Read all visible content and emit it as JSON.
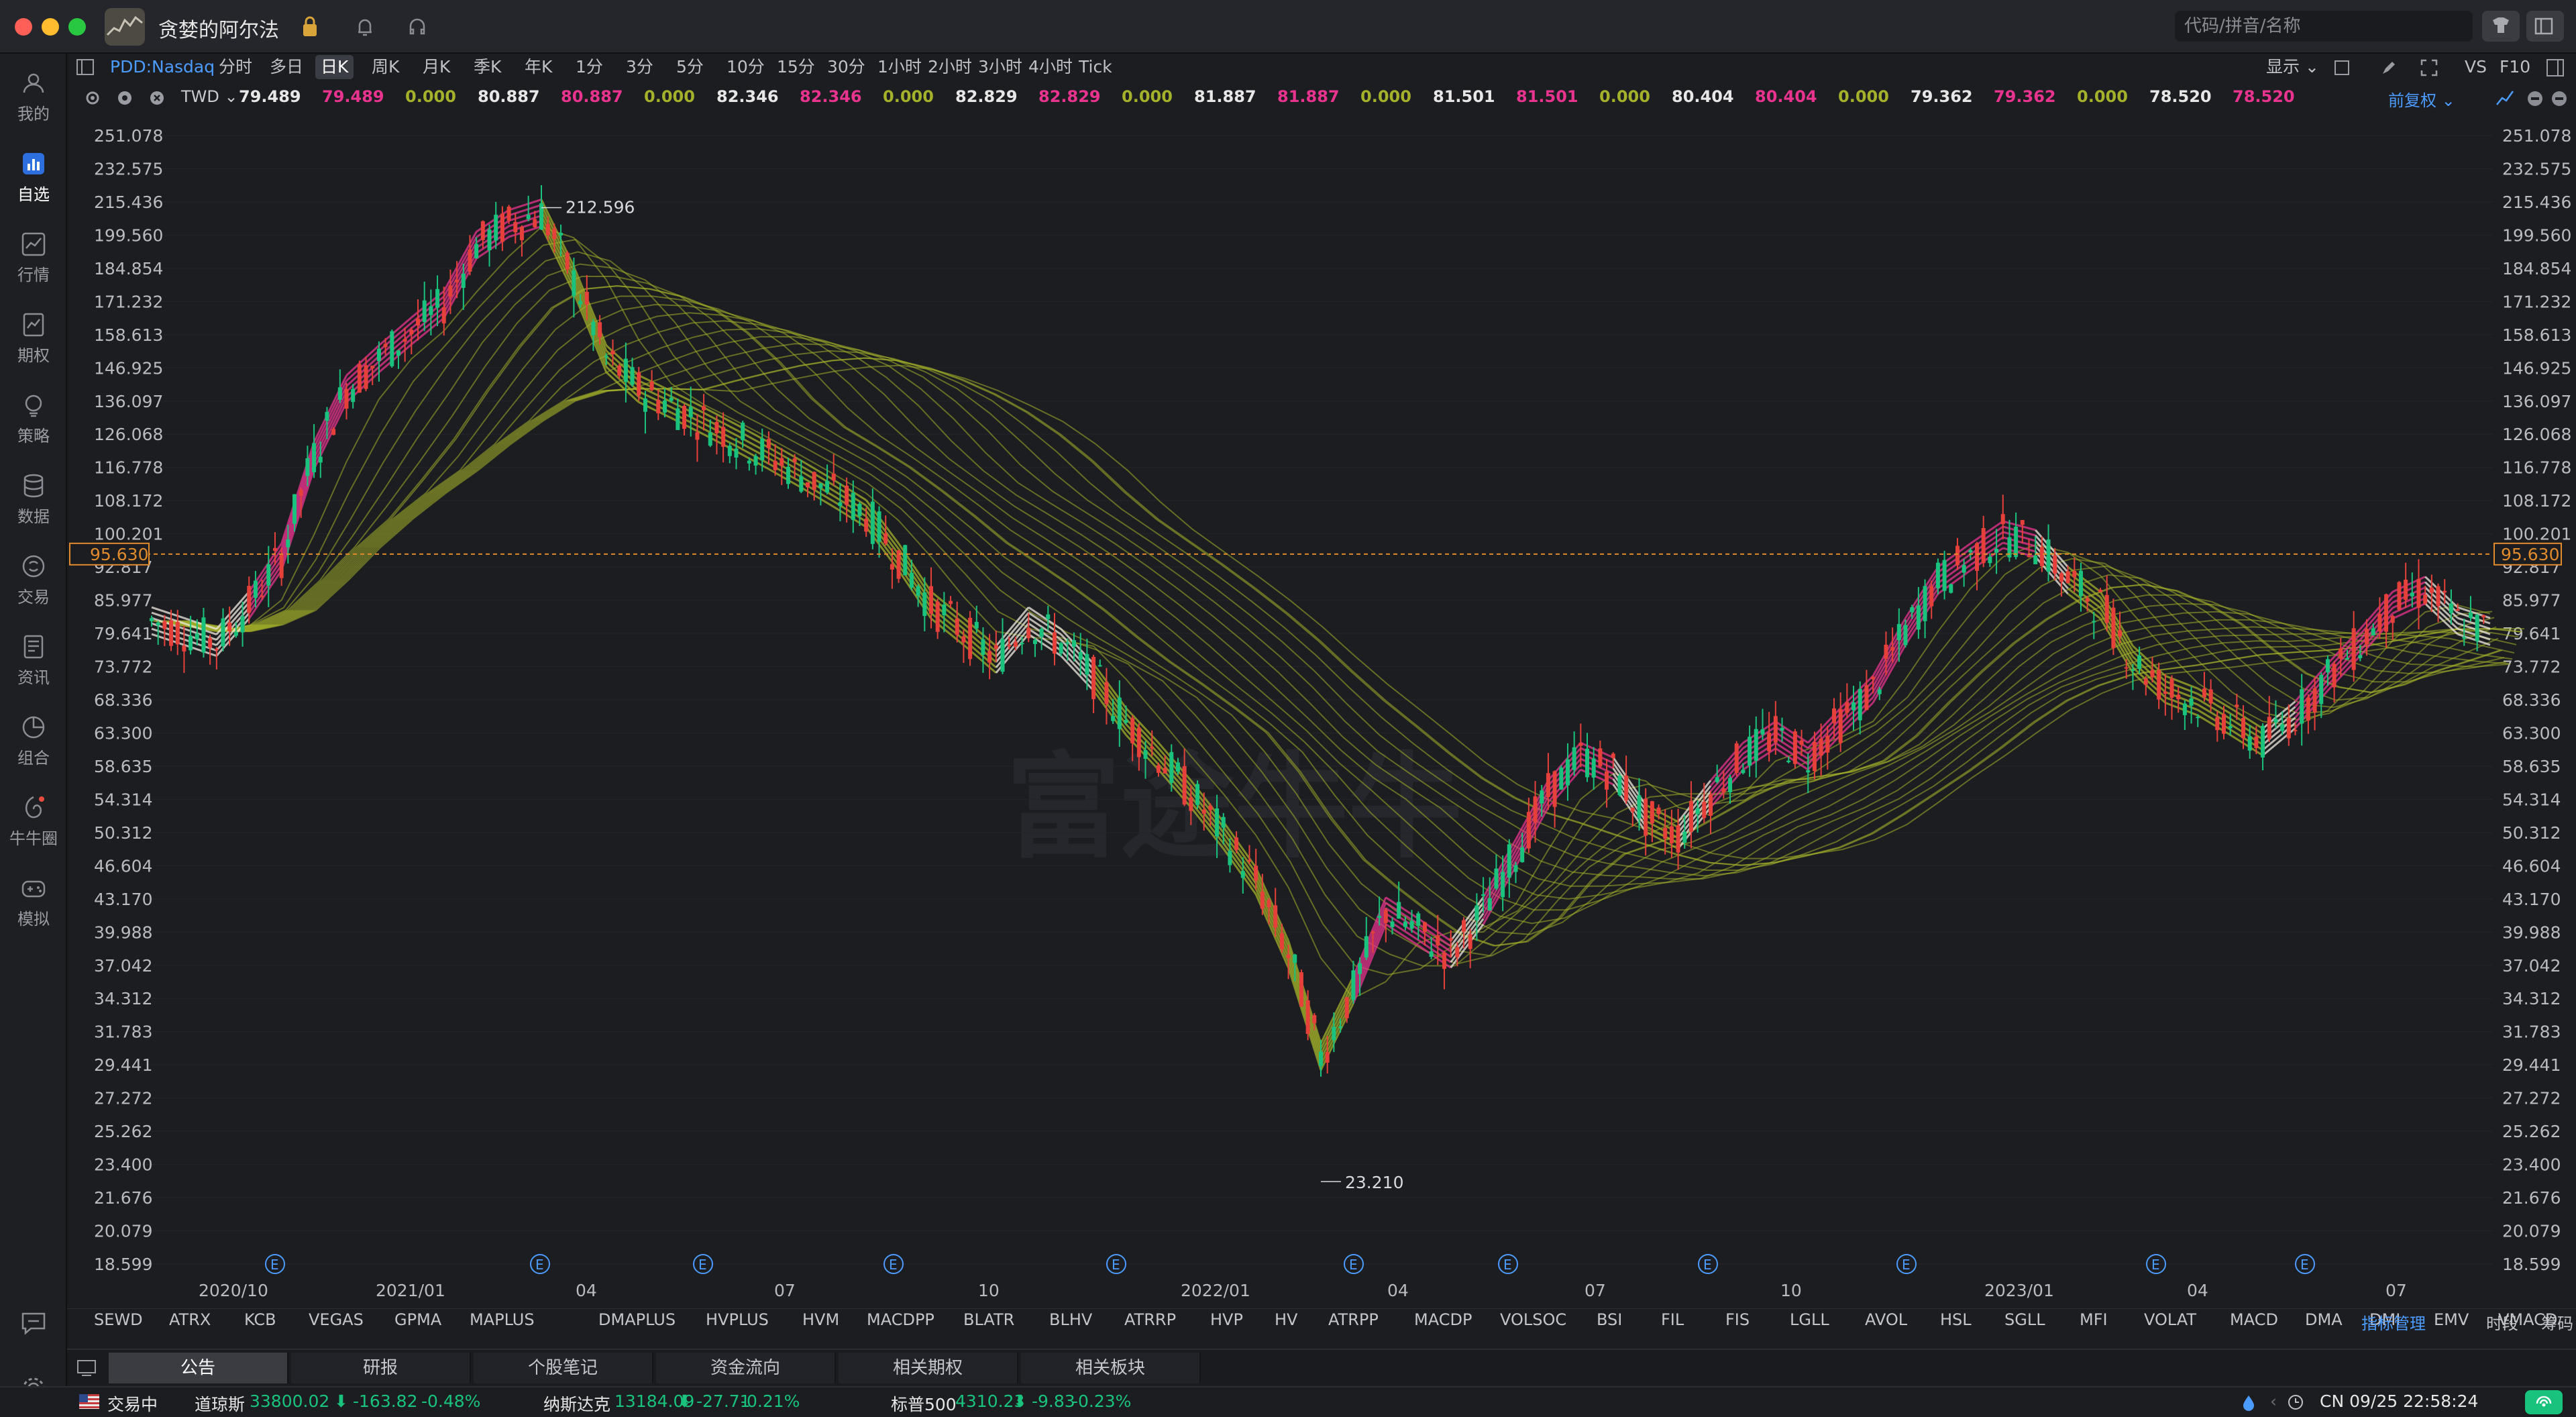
{
  "window": {
    "title": "贪婪的阿尔法",
    "search_placeholder": "代码/拼音/名称"
  },
  "sidebar": {
    "items": [
      {
        "label": "我的",
        "icon": "user-icon"
      },
      {
        "label": "自选",
        "icon": "watchlist-icon",
        "active": true
      },
      {
        "label": "行情",
        "icon": "market-icon"
      },
      {
        "label": "期权",
        "icon": "options-icon"
      },
      {
        "label": "策略",
        "icon": "strategy-icon"
      },
      {
        "label": "数据",
        "icon": "database-icon"
      },
      {
        "label": "交易",
        "icon": "trade-icon"
      },
      {
        "label": "资讯",
        "icon": "news-icon"
      },
      {
        "label": "组合",
        "icon": "portfolio-icon"
      },
      {
        "label": "牛牛圈",
        "icon": "community-icon"
      },
      {
        "label": "模拟",
        "icon": "simulate-icon"
      }
    ]
  },
  "toolbar": {
    "symbol": "PDD:Nasdaq",
    "timeframes": [
      "分时",
      "多日",
      "日K",
      "周K",
      "月K",
      "季K",
      "年K",
      "1分",
      "3分",
      "5分",
      "10分",
      "15分",
      "30分",
      "1小时",
      "2小时",
      "3小时",
      "4小时",
      "Tick"
    ],
    "active_timeframe": "日K",
    "display": "显示",
    "vs": "VS",
    "f10": "F10",
    "adjust": "前复权"
  },
  "ma_row": {
    "indicator": "TWD",
    "values": [
      [
        "79.489",
        "#e7e7e7"
      ],
      [
        "79.489",
        "#e8338f"
      ],
      [
        "0.000",
        "#a4b12a"
      ],
      [
        "80.887",
        "#e7e7e7"
      ],
      [
        "80.887",
        "#e8338f"
      ],
      [
        "0.000",
        "#a4b12a"
      ],
      [
        "82.346",
        "#e7e7e7"
      ],
      [
        "82.346",
        "#e8338f"
      ],
      [
        "0.000",
        "#a4b12a"
      ],
      [
        "82.829",
        "#e7e7e7"
      ],
      [
        "82.829",
        "#e8338f"
      ],
      [
        "0.000",
        "#a4b12a"
      ],
      [
        "81.887",
        "#e7e7e7"
      ],
      [
        "81.887",
        "#e8338f"
      ],
      [
        "0.000",
        "#a4b12a"
      ],
      [
        "81.501",
        "#e7e7e7"
      ],
      [
        "81.501",
        "#e8338f"
      ],
      [
        "0.000",
        "#a4b12a"
      ],
      [
        "80.404",
        "#e7e7e7"
      ],
      [
        "80.404",
        "#e8338f"
      ],
      [
        "0.000",
        "#a4b12a"
      ],
      [
        "79.362",
        "#e7e7e7"
      ],
      [
        "79.362",
        "#e8338f"
      ],
      [
        "0.000",
        "#a4b12a"
      ],
      [
        "78.520",
        "#e7e7e7"
      ],
      [
        "78.520",
        "#e8338f"
      ]
    ]
  },
  "chart_data": {
    "type": "candlestick",
    "y_ticks": [
      "251.078",
      "232.575",
      "215.436",
      "199.560",
      "184.854",
      "171.232",
      "158.613",
      "146.925",
      "136.097",
      "126.068",
      "116.778",
      "108.172",
      "100.201",
      "92.817",
      "85.977",
      "79.641",
      "73.772",
      "68.336",
      "63.300",
      "58.635",
      "54.314",
      "50.312",
      "46.604",
      "43.170",
      "39.988",
      "37.042",
      "34.312",
      "31.783",
      "29.441",
      "27.272",
      "25.262",
      "23.400",
      "21.676",
      "20.079",
      "18.599"
    ],
    "x_labels": [
      "2020/10",
      "2021/01",
      "04",
      "07",
      "10",
      "2022/01",
      "04",
      "07",
      "10",
      "2023/01",
      "04",
      "07"
    ],
    "current_price": "95.630",
    "high_label": "212.596",
    "low_label": "23.210",
    "ylim": [
      18.599,
      251.078
    ],
    "scale": "log",
    "series_close": [
      82,
      80,
      78,
      85,
      95,
      120,
      140,
      150,
      160,
      170,
      195,
      205,
      210,
      180,
      150,
      140,
      135,
      130,
      125,
      120,
      115,
      110,
      105,
      95,
      85,
      80,
      75,
      82,
      78,
      72,
      65,
      60,
      55,
      50,
      45,
      38,
      30,
      35,
      42,
      40,
      38,
      42,
      48,
      55,
      60,
      58,
      52,
      50,
      55,
      60,
      63,
      60,
      65,
      70,
      80,
      90,
      95,
      100,
      98,
      90,
      85,
      75,
      70,
      68,
      65,
      62,
      66,
      72,
      78,
      85,
      88,
      82,
      80
    ],
    "band_colors": [
      "#f1eadf",
      "#e8338f",
      "#a4b12a"
    ],
    "event_marker": "E"
  },
  "indicator_tabs": [
    "SEWD",
    "ATRX",
    "KCB",
    "VEGAS",
    "GPMA",
    "MAPLUS",
    "DMAPLUS",
    "HVPLUS",
    "HVM",
    "MACDPP",
    "BLATR",
    "BLHV",
    "ATRRP",
    "HVP",
    "HV",
    "ATRPP",
    "MACDP",
    "VOLSOC",
    "BSI",
    "FIL",
    "FIS",
    "LGLL",
    "AVOL",
    "HSL",
    "SGLL",
    "MFI",
    "VOLAT",
    "MACD",
    "DMA",
    "DMI",
    "EMV",
    "VMACD"
  ],
  "indicator_manage": "指标管理",
  "segment_label": "时段",
  "chip_label": "筹码",
  "panel_tabs": [
    "公告",
    "研报",
    "个股笔记",
    "资金流向",
    "相关期权",
    "相关板块"
  ],
  "status": {
    "market_state": "交易中",
    "dow": {
      "name": "道琼斯",
      "value": "33800.02",
      "change": "-163.82",
      "pct": "-0.48%"
    },
    "nasdaq": {
      "name": "纳斯达克",
      "value": "13184.09",
      "change": "-27.71",
      "pct": "-0.21%"
    },
    "sp500": {
      "name": "标普500",
      "value": "4310.23",
      "change": "-9.83",
      "pct": "-0.23%"
    },
    "time": "CN 09/25 22:58:24"
  },
  "watermark": "富途牛牛"
}
